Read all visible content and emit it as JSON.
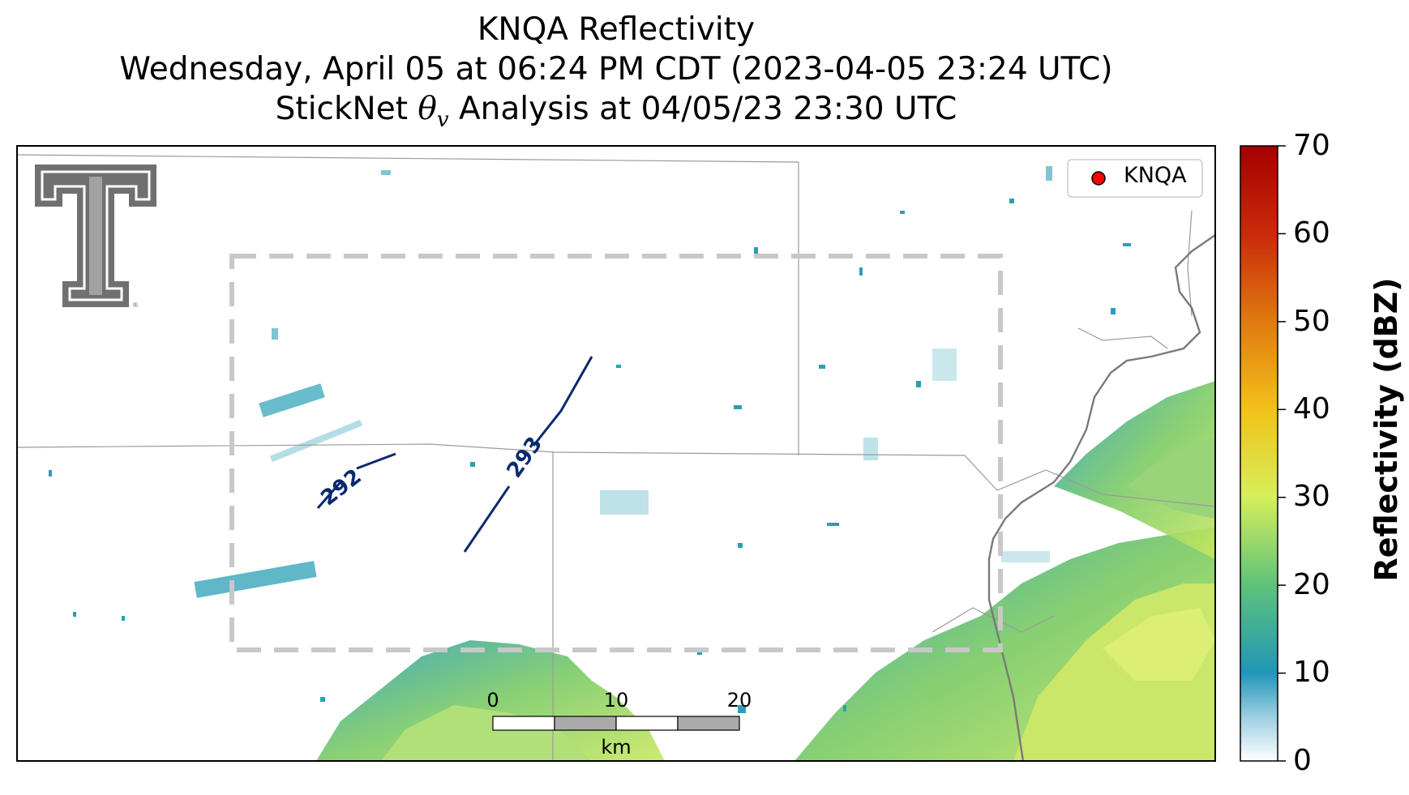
{
  "title": {
    "line1": "KNQA Reflectivity",
    "line2": "Wednesday, April 05 at 06:24 PM CDT (2023-04-05 23:24 UTC)",
    "line3_pre": "StickNet ",
    "line3_theta": "θ",
    "line3_sub": "v",
    "line3_post": " Analysis at 04/05/23 23:30 UTC"
  },
  "legend": {
    "label": "KNQA",
    "marker_color": "#ff0000"
  },
  "colorbar": {
    "label": "Reflectivity (dBZ)",
    "ticks": [
      "0",
      "10",
      "20",
      "30",
      "40",
      "50",
      "60",
      "70"
    ],
    "range": [
      0,
      70
    ],
    "colors": [
      "#ffffff",
      "#2196b8",
      "#5fc27a",
      "#d6ef5a",
      "#f2c21a",
      "#e07a10",
      "#c92a0a",
      "#a50000"
    ]
  },
  "contours": [
    {
      "label": "292"
    },
    {
      "label": "293"
    }
  ],
  "scale_bar": {
    "ticks": [
      "0",
      "10",
      "20"
    ],
    "unit": "km"
  },
  "logo": {
    "name": "Texas Tech Double T",
    "color": "#707070"
  },
  "analysis_box_color": "#c8c8c8",
  "contour_color": "#0a2a6e"
}
